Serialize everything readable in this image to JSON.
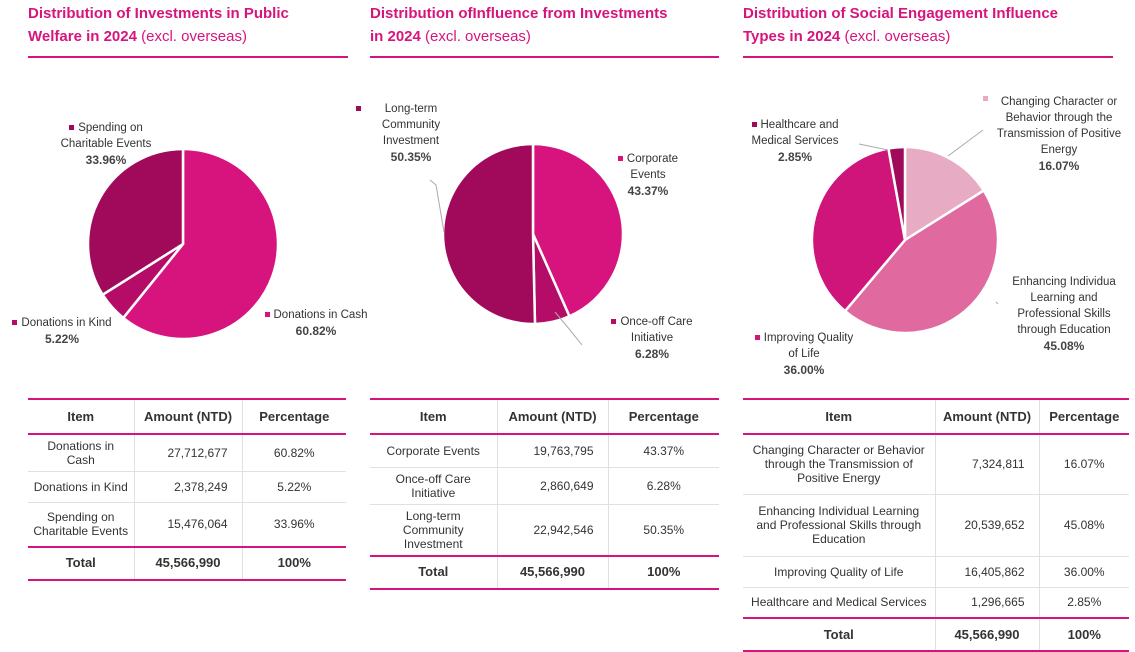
{
  "panels": [
    {
      "title": "Distribution of Investments in Public Welfare in 2024",
      "title_suffix": "(excl. overseas)",
      "table": {
        "headers": [
          "Item",
          "Amount (NTD)",
          "Percentage"
        ],
        "rows": [
          [
            "Donations in Cash",
            "27,712,677",
            "60.82%"
          ],
          [
            "Donations in Kind",
            "2,378,249",
            "5.22%"
          ],
          [
            "Spending on Charitable Events",
            "15,476,064",
            "33.96%"
          ]
        ],
        "total": [
          "Total",
          "45,566,990",
          "100%"
        ]
      }
    },
    {
      "title": "Distribution ofInfluence from Investments in 2024",
      "title_suffix": "(excl. overseas)",
      "table": {
        "headers": [
          "Item",
          "Amount (NTD)",
          "Percentage"
        ],
        "rows": [
          [
            "Corporate Events",
            "19,763,795",
            "43.37%"
          ],
          [
            "Once-off Care Initiative",
            "2,860,649",
            "6.28%"
          ],
          [
            "Long-term Community Investment",
            "22,942,546",
            "50.35%"
          ]
        ],
        "total": [
          "Total",
          "45,566,990",
          "100%"
        ]
      }
    },
    {
      "title": "Distribution of Social Engagement Influence Types in 2024",
      "title_suffix": "(excl. overseas)",
      "table": {
        "headers": [
          "Item",
          "Amount (NTD)",
          "Percentage"
        ],
        "rows": [
          [
            "Changing Character or Behavior through the Transmission of Positive Energy",
            "7,324,811",
            "16.07%"
          ],
          [
            "Enhancing Individual Learning and Professional Skills through Education",
            "20,539,652",
            "45.08%"
          ],
          [
            "Improving Quality of Life",
            "16,405,862",
            "36.00%"
          ],
          [
            "Healthcare and Medical Services",
            "1,296,665",
            "2.85%"
          ]
        ],
        "total": [
          "Total",
          "45,566,990",
          "100%"
        ]
      }
    }
  ],
  "chart_data": [
    {
      "type": "pie",
      "title": "Distribution of Investments in Public Welfare in 2024 (excl. overseas)",
      "slices": [
        {
          "label": "Donations in Cash",
          "value": 60.82,
          "pct_label": "60.82%",
          "color": "#d7147d"
        },
        {
          "label": "Donations in Kind",
          "value": 5.22,
          "pct_label": "5.22%",
          "color": "#b40c67"
        },
        {
          "label": "Spending on Charitable Events",
          "value": 33.96,
          "pct_label": "33.96%",
          "color": "#a10a5b"
        }
      ]
    },
    {
      "type": "pie",
      "title": "Distribution ofInfluence from Investments in 2024 (excl. overseas)",
      "slices": [
        {
          "label": "Corporate Events",
          "value": 43.37,
          "pct_label": "43.37%",
          "color": "#d7147d"
        },
        {
          "label": "Once-off Care Initiative",
          "value": 6.28,
          "pct_label": "6.28%",
          "color": "#b40c67"
        },
        {
          "label": "Long-term Community Investment",
          "value": 50.35,
          "pct_label": "50.35%",
          "color": "#a10a5b"
        }
      ]
    },
    {
      "type": "pie",
      "title": "Distribution of Social Engagement Influence Types in 2024 (excl. overseas)",
      "slices": [
        {
          "label": "Changing Character or Behavior through the Transmission of Positive Energy",
          "value": 16.07,
          "pct_label": "16.07%",
          "color": "#e8abc4"
        },
        {
          "label": "Enhancing Individual Learning and Professional Skills through Education",
          "value": 45.08,
          "pct_label": "45.08%",
          "color": "#e0699f"
        },
        {
          "label": "Improving Quality of Life",
          "value": 36.0,
          "pct_label": "36.00%",
          "color": "#cf147a"
        },
        {
          "label": "Healthcare and Medical Services",
          "value": 2.85,
          "pct_label": "2.85%",
          "color": "#a10a5b"
        }
      ]
    }
  ]
}
